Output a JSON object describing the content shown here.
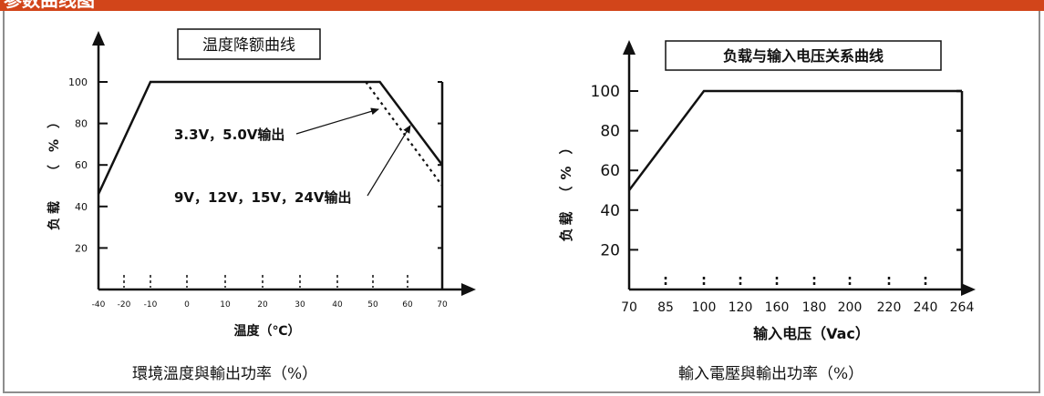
{
  "header": {
    "title": "参数曲线图",
    "color": "#d2451a"
  },
  "chart_data": [
    {
      "type": "line",
      "title": "温度降额曲线",
      "xlabel": "温度（℃）",
      "ylabel_chars": [
        "负",
        "载",
        "（",
        "%",
        "）"
      ],
      "x_ticks": [
        -40,
        -20,
        -10,
        0,
        10,
        20,
        30,
        40,
        50,
        60,
        70
      ],
      "x_tick_labels": [
        "-40",
        "-20",
        "-10",
        "0",
        "10",
        "20",
        "30",
        "40",
        "50",
        "60",
        "70"
      ],
      "y_ticks": [
        20,
        40,
        60,
        80,
        100
      ],
      "y_tick_labels": [
        "20",
        "40",
        "60",
        "80",
        "100"
      ],
      "ylim": [
        0,
        100
      ],
      "series": [
        {
          "points": [
            [
              -40,
              46
            ],
            [
              -10,
              100
            ],
            [
              52,
              100
            ],
            [
              70,
              60
            ]
          ],
          "style": "solid"
        },
        {
          "points": [
            [
              48,
              100
            ],
            [
              70,
              50
            ]
          ],
          "style": "dotted"
        }
      ],
      "annotations": [
        "3.3V，5.0V输出",
        "9V，12V，15V，24V输出"
      ],
      "caption": "環境溫度與輸出功率（%）"
    },
    {
      "type": "line",
      "title": "负载与输入电压关系曲线",
      "xlabel": "输入电压（Vac）",
      "ylabel_chars": [
        "负",
        "载",
        "（",
        "%",
        "）"
      ],
      "x_ticks": [
        70,
        85,
        100,
        120,
        160,
        180,
        200,
        220,
        240,
        264
      ],
      "x_tick_labels": [
        "70",
        "85",
        "100",
        "120",
        "160",
        "180",
        "200",
        "220",
        "240",
        "264"
      ],
      "y_ticks": [
        20,
        40,
        60,
        80,
        100
      ],
      "y_tick_labels": [
        "20",
        "40",
        "60",
        "80",
        "100"
      ],
      "ylim": [
        0,
        100
      ],
      "series": [
        {
          "points": [
            [
              70,
              50
            ],
            [
              100,
              100
            ],
            [
              264,
              100
            ]
          ],
          "style": "solid"
        }
      ],
      "caption": "輸入電壓與輸出功率（%）"
    }
  ]
}
